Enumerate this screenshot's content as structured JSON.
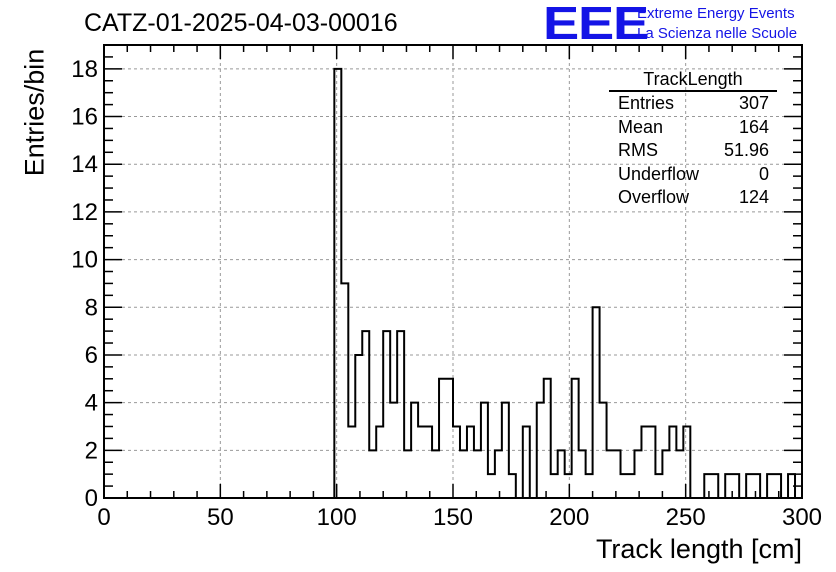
{
  "header": {
    "title": "CATZ-01-2025-04-03-00016"
  },
  "logo": {
    "mark": "EEE",
    "line1": "Extreme Energy Events",
    "line2": "La Scienza nelle Scuole",
    "color": "#1414e6"
  },
  "stats_box": {
    "title": "TrackLength",
    "rows": [
      {
        "label": "Entries",
        "value": "307"
      },
      {
        "label": "Mean",
        "value": "164"
      },
      {
        "label": "RMS",
        "value": "51.96"
      },
      {
        "label": "Underflow",
        "value": "0"
      },
      {
        "label": "Overflow",
        "value": "124"
      }
    ]
  },
  "chart_data": {
    "type": "histogram",
    "title": "CATZ-01-2025-04-03-00016",
    "xlabel": "Track length [cm]",
    "ylabel": "Entries/bin",
    "xlim": [
      0,
      300
    ],
    "ylim": [
      0,
      19
    ],
    "xticks": [
      0,
      50,
      100,
      150,
      200,
      250,
      300
    ],
    "yticks": [
      0,
      2,
      4,
      6,
      8,
      10,
      12,
      14,
      16,
      18
    ],
    "grid": true,
    "bin_width": 3,
    "x_start": 0,
    "values": [
      0,
      0,
      0,
      0,
      0,
      0,
      0,
      0,
      0,
      0,
      0,
      0,
      0,
      0,
      0,
      0,
      0,
      0,
      0,
      0,
      0,
      0,
      0,
      0,
      0,
      0,
      0,
      0,
      0,
      0,
      0,
      0,
      0,
      18,
      9,
      3,
      6,
      7,
      2,
      3,
      7,
      4,
      7,
      2,
      4,
      3,
      3,
      2,
      5,
      5,
      3,
      2,
      3,
      2,
      4,
      1,
      2,
      4,
      1,
      0,
      3,
      0,
      4,
      5,
      1,
      2,
      1,
      5,
      2,
      1,
      8,
      4,
      2,
      2,
      1,
      1,
      2,
      3,
      3,
      1,
      2,
      3,
      2,
      3,
      0,
      0,
      1,
      1,
      0,
      1,
      1,
      0,
      1,
      1,
      0,
      1,
      1,
      0,
      1,
      0,
      1,
      1,
      0
    ]
  }
}
